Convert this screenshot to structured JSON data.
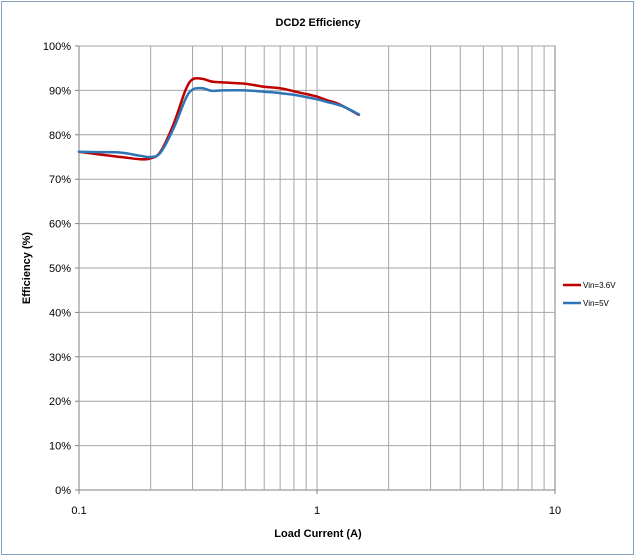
{
  "chart_data": {
    "type": "line",
    "title": "DCD2 Efficiency",
    "xlabel": "Load Current (A)",
    "ylabel": "Efficiency (%)",
    "x_scale": "log",
    "xlim": [
      0.1,
      10
    ],
    "ylim": [
      0,
      100
    ],
    "x_ticks": [
      0.1,
      1,
      10
    ],
    "x_tick_labels": [
      "0.1",
      "1",
      "10"
    ],
    "y_ticks": [
      0,
      10,
      20,
      30,
      40,
      50,
      60,
      70,
      80,
      90,
      100
    ],
    "y_tick_labels": [
      "0%",
      "10%",
      "20%",
      "30%",
      "40%",
      "50%",
      "60%",
      "70%",
      "80%",
      "90%",
      "100%"
    ],
    "grid": true,
    "legend_position": "right",
    "series": [
      {
        "name": "Vin=3.6V",
        "color": "#c00000",
        "x": [
          0.1,
          0.12,
          0.15,
          0.18,
          0.2,
          0.22,
          0.25,
          0.28,
          0.3,
          0.33,
          0.36,
          0.4,
          0.5,
          0.6,
          0.7,
          0.8,
          0.9,
          1.0,
          1.1,
          1.2,
          1.3,
          1.5
        ],
        "y": [
          76.2,
          75.6,
          75.0,
          74.5,
          74.7,
          76.2,
          82.5,
          90.0,
          92.5,
          92.6,
          92.0,
          91.8,
          91.5,
          90.8,
          90.5,
          89.8,
          89.2,
          88.6,
          87.8,
          87.2,
          86.3,
          84.5
        ]
      },
      {
        "name": "Vin=5V",
        "color": "#2e75b6",
        "x": [
          0.1,
          0.12,
          0.15,
          0.18,
          0.2,
          0.22,
          0.25,
          0.28,
          0.3,
          0.33,
          0.36,
          0.4,
          0.5,
          0.6,
          0.7,
          0.8,
          0.9,
          1.0,
          1.1,
          1.2,
          1.3,
          1.5
        ],
        "y": [
          76.2,
          76.1,
          76.0,
          75.3,
          75.0,
          76.0,
          81.5,
          88.0,
          90.2,
          90.5,
          89.9,
          90.0,
          90.0,
          89.7,
          89.4,
          89.0,
          88.5,
          88.0,
          87.4,
          86.9,
          86.3,
          84.6
        ]
      }
    ]
  }
}
